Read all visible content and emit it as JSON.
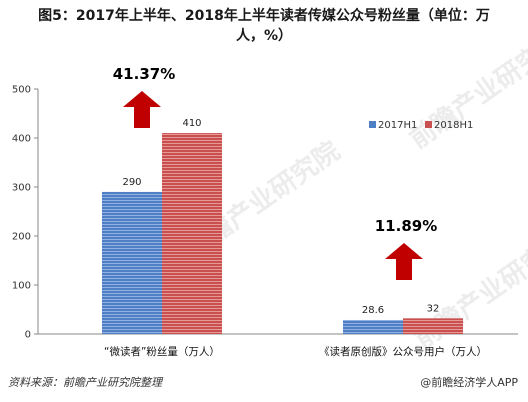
{
  "title_lines": [
    "图5：2017年上半年、2018年上半年读者传媒公众号粉丝量（单位：万",
    "人，%）"
  ],
  "watermark": "前瞻产业研究院",
  "footer": {
    "source": "资料来源：前瞻产业研究院整理",
    "credit": "@前瞻经济学人APP"
  },
  "chart_data": {
    "type": "bar",
    "title": "图5：2017年上半年、2018年上半年读者传媒公众号粉丝量（单位：万人，%）",
    "categories": [
      "“微读者”粉丝量（万人）",
      "《读者原创版》公众号用户（万人）"
    ],
    "series": [
      {
        "name": "2017H1",
        "values": [
          290,
          28.6
        ],
        "color": "#4f7fc4"
      },
      {
        "name": "2018H1",
        "values": [
          410,
          32
        ],
        "color": "#c9504f"
      }
    ],
    "growth_labels": [
      "41.37%",
      "11.89%"
    ],
    "growth_arrow_color": "#c00000",
    "ylim": [
      0,
      500
    ],
    "yticks": [
      0,
      100,
      200,
      300,
      400,
      500
    ],
    "legend_position": "top-right",
    "grid": false
  }
}
